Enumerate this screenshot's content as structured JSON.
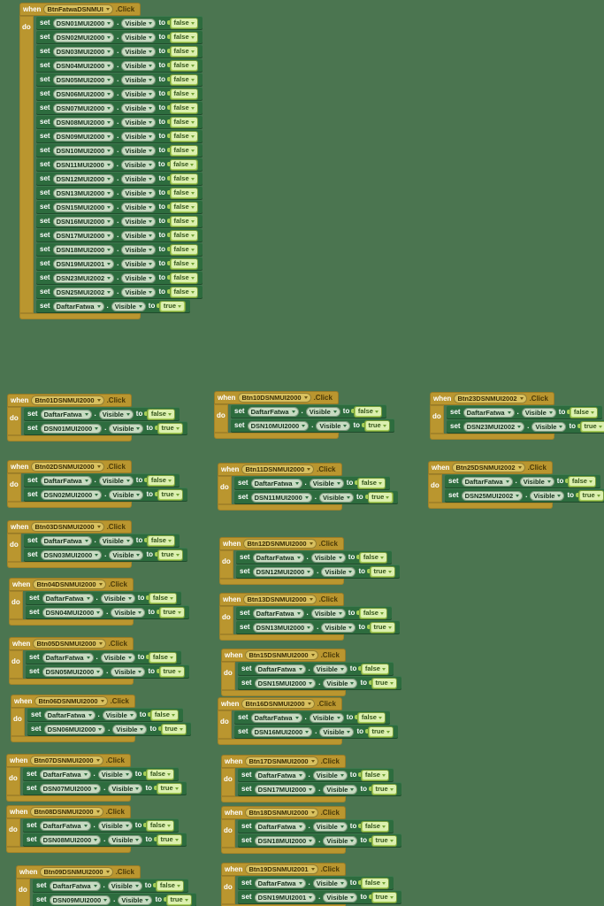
{
  "app": {
    "name": "blocks-workspace"
  },
  "colors": {
    "canvas_bg": "#4B7550",
    "event_gold": "#BA962F",
    "event_gold_pill": "#D8C05F",
    "setter_green": "#2D6C3E",
    "field_pill": "#C7DBC2",
    "logic_green": "#A6CE58",
    "logic_inner": "#DCF0AF"
  },
  "keywords": {
    "when": "when",
    "do": "do",
    "set": "set",
    "to": "to",
    "dot": ".",
    "click": ".Click",
    "visible": "Visible",
    "false_label": "false",
    "true_label": "true"
  },
  "main_event": {
    "component": "BtnFatwaDSNMUI",
    "event": ".Click",
    "sets": [
      {
        "component": "DSN01MUI2000",
        "property": "Visible",
        "value": "false"
      },
      {
        "component": "DSN02MUI2000",
        "property": "Visible",
        "value": "false"
      },
      {
        "component": "DSN03MUI2000",
        "property": "Visible",
        "value": "false"
      },
      {
        "component": "DSN04MUI2000",
        "property": "Visible",
        "value": "false"
      },
      {
        "component": "DSN05MUI2000",
        "property": "Visible",
        "value": "false"
      },
      {
        "component": "DSN06MUI2000",
        "property": "Visible",
        "value": "false"
      },
      {
        "component": "DSN07MUI2000",
        "property": "Visible",
        "value": "false"
      },
      {
        "component": "DSN08MUI2000",
        "property": "Visible",
        "value": "false"
      },
      {
        "component": "DSN09MUI2000",
        "property": "Visible",
        "value": "false"
      },
      {
        "component": "DSN10MUI2000",
        "property": "Visible",
        "value": "false"
      },
      {
        "component": "DSN11MUI2000",
        "property": "Visible",
        "value": "false"
      },
      {
        "component": "DSN12MUI2000",
        "property": "Visible",
        "value": "false"
      },
      {
        "component": "DSN13MUI2000",
        "property": "Visible",
        "value": "false"
      },
      {
        "component": "DSN15MUI2000",
        "property": "Visible",
        "value": "false"
      },
      {
        "component": "DSN16MUI2000",
        "property": "Visible",
        "value": "false"
      },
      {
        "component": "DSN17MUI2000",
        "property": "Visible",
        "value": "false"
      },
      {
        "component": "DSN18MUI2000",
        "property": "Visible",
        "value": "false"
      },
      {
        "component": "DSN19MUI2001",
        "property": "Visible",
        "value": "false"
      },
      {
        "component": "DSN23MUI2002",
        "property": "Visible",
        "value": "false"
      },
      {
        "component": "DSN25MUI2002",
        "property": "Visible",
        "value": "false"
      },
      {
        "component": "DaftarFatwa",
        "property": "Visible",
        "value": "true"
      }
    ]
  },
  "click_handlers": [
    {
      "button": "Btn01DSNMUI2000",
      "hide": "DaftarFatwa",
      "show": "DSN01MUI2000"
    },
    {
      "button": "Btn02DSNMUI2000",
      "hide": "DaftarFatwa",
      "show": "DSN02MUI2000"
    },
    {
      "button": "Btn03DSNMUI2000",
      "hide": "DaftarFatwa",
      "show": "DSN03MUI2000"
    },
    {
      "button": "Btn04DSNMUI2000",
      "hide": "DaftarFatwa",
      "show": "DSN04MUI2000"
    },
    {
      "button": "Btn05DSNMUI2000",
      "hide": "DaftarFatwa",
      "show": "DSN05MUI2000"
    },
    {
      "button": "Btn06DSNMUI2000",
      "hide": "DaftarFatwa",
      "show": "DSN06MUI2000"
    },
    {
      "button": "Btn07DSNMUI2000",
      "hide": "DaftarFatwa",
      "show": "DSN07MUI2000"
    },
    {
      "button": "Btn08DSNMUI2000",
      "hide": "DaftarFatwa",
      "show": "DSN08MUI2000"
    },
    {
      "button": "Btn09DSNMUI2000",
      "hide": "DaftarFatwa",
      "show": "DSN09MUI2000"
    },
    {
      "button": "Btn10DSNMUI2000",
      "hide": "DaftarFatwa",
      "show": "DSN10MUI2000"
    },
    {
      "button": "Btn11DSNMUI2000",
      "hide": "DaftarFatwa",
      "show": "DSN11MUI2000"
    },
    {
      "button": "Btn12DSNMUI2000",
      "hide": "DaftarFatwa",
      "show": "DSN12MUI2000"
    },
    {
      "button": "Btn13DSNMUI2000",
      "hide": "DaftarFatwa",
      "show": "DSN13MUI2000"
    },
    {
      "button": "Btn15DSNMUI2000",
      "hide": "DaftarFatwa",
      "show": "DSN15MUI2000"
    },
    {
      "button": "Btn16DSNMUI2000",
      "hide": "DaftarFatwa",
      "show": "DSN16MUI2000"
    },
    {
      "button": "Btn17DSNMUI2000",
      "hide": "DaftarFatwa",
      "show": "DSN17MUI2000"
    },
    {
      "button": "Btn18DSNMUI2000",
      "hide": "DaftarFatwa",
      "show": "DSN18MUI2000"
    },
    {
      "button": "Btn19DSNMUI2001",
      "hide": "DaftarFatwa",
      "show": "DSN19MUI2001"
    },
    {
      "button": "Btn23DSNMUI2002",
      "hide": "DaftarFatwa",
      "show": "DSN23MUI2002"
    },
    {
      "button": "Btn25DSNMUI2002",
      "hide": "DaftarFatwa",
      "show": "DSN25MUI2002"
    }
  ]
}
